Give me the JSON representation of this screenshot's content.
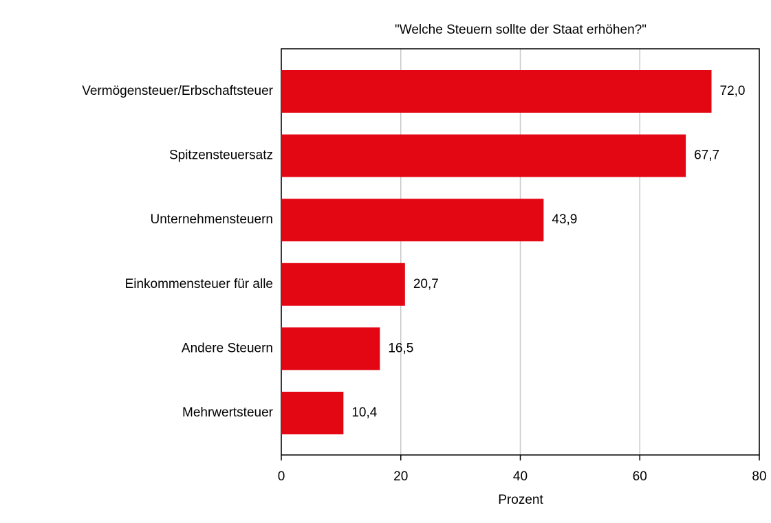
{
  "chart_data": {
    "type": "barh",
    "title": "\"Welche Steuern sollte der Staat erhöhen?\"",
    "xlabel": "Prozent",
    "categories": [
      "Vermögensteuer/Erbschaftsteuer",
      "Spitzensteuersatz",
      "Unternehmensteuern",
      "Einkommensteuer für alle",
      "Andere Steuern",
      "Mehrwertsteuer"
    ],
    "values": [
      72.0,
      67.7,
      43.9,
      20.7,
      16.5,
      10.4
    ],
    "value_labels": [
      "72,0",
      "67,7",
      "43,9",
      "20,7",
      "16,5",
      "10,4"
    ],
    "color": "#e30613",
    "xlim": [
      0,
      80
    ],
    "xticks": [
      0,
      20,
      40,
      60,
      80
    ],
    "grid": true
  }
}
